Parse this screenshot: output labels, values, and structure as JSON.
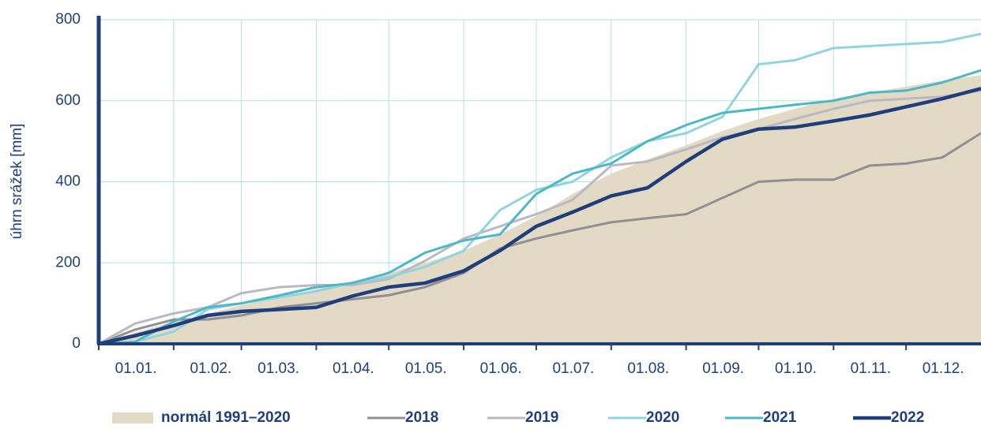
{
  "chart_data": {
    "type": "line",
    "y_label": "úhrn srážek [mm]",
    "x": [
      0,
      15,
      31,
      45,
      59,
      75,
      90,
      105,
      120,
      135,
      151,
      166,
      181,
      196,
      212,
      227,
      243,
      258,
      273,
      288,
      304,
      319,
      334,
      349,
      365
    ],
    "xlim": [
      0,
      365
    ],
    "xticks": [
      {
        "value": 0,
        "label": "01.01."
      },
      {
        "value": 31,
        "label": "01.02."
      },
      {
        "value": 59,
        "label": "01.03."
      },
      {
        "value": 90,
        "label": "01.04."
      },
      {
        "value": 120,
        "label": "01.05."
      },
      {
        "value": 151,
        "label": "01.06."
      },
      {
        "value": 181,
        "label": "01.07."
      },
      {
        "value": 212,
        "label": "01.08."
      },
      {
        "value": 243,
        "label": "01.09."
      },
      {
        "value": 273,
        "label": "01.10."
      },
      {
        "value": 304,
        "label": "01.11."
      },
      {
        "value": 334,
        "label": "01.12."
      }
    ],
    "ylim": [
      0,
      800
    ],
    "yticks": [
      0,
      200,
      400,
      600,
      800
    ],
    "grid": true,
    "legend": "bottom",
    "series": [
      {
        "name": "normál 1991–2020",
        "style": "area",
        "color": "#e3dac6",
        "values": [
          0,
          28,
          55,
          75,
          95,
          115,
          135,
          155,
          175,
          200,
          230,
          270,
          315,
          370,
          420,
          455,
          490,
          525,
          555,
          580,
          605,
          620,
          635,
          650,
          663
        ]
      },
      {
        "name": "2018",
        "style": "line",
        "color": "#8f8f94",
        "values": [
          0,
          35,
          60,
          60,
          70,
          90,
          100,
          110,
          120,
          140,
          175,
          235,
          260,
          280,
          300,
          310,
          320,
          360,
          400,
          405,
          405,
          440,
          445,
          460,
          520
        ]
      },
      {
        "name": "2019",
        "style": "line",
        "color": "#b9b9c1",
        "values": [
          0,
          50,
          75,
          90,
          125,
          140,
          145,
          145,
          160,
          205,
          260,
          290,
          320,
          355,
          440,
          450,
          480,
          510,
          530,
          555,
          580,
          600,
          605,
          610,
          625
        ]
      },
      {
        "name": "2020",
        "style": "line",
        "color": "#92d4de",
        "values": [
          0,
          5,
          30,
          85,
          100,
          115,
          130,
          150,
          165,
          190,
          230,
          330,
          380,
          400,
          460,
          500,
          520,
          560,
          690,
          700,
          730,
          735,
          740,
          745,
          765
        ]
      },
      {
        "name": "2021",
        "style": "line",
        "color": "#4db8c5",
        "values": [
          0,
          5,
          55,
          90,
          100,
          120,
          140,
          150,
          175,
          225,
          255,
          270,
          370,
          420,
          445,
          500,
          540,
          570,
          580,
          590,
          600,
          620,
          625,
          645,
          675
        ]
      },
      {
        "name": "2022",
        "style": "line",
        "color": "#1f3f7c",
        "values": [
          0,
          20,
          45,
          70,
          80,
          85,
          90,
          118,
          140,
          150,
          180,
          230,
          290,
          325,
          365,
          385,
          450,
          505,
          530,
          535,
          550,
          565,
          585,
          605,
          630
        ]
      }
    ]
  }
}
